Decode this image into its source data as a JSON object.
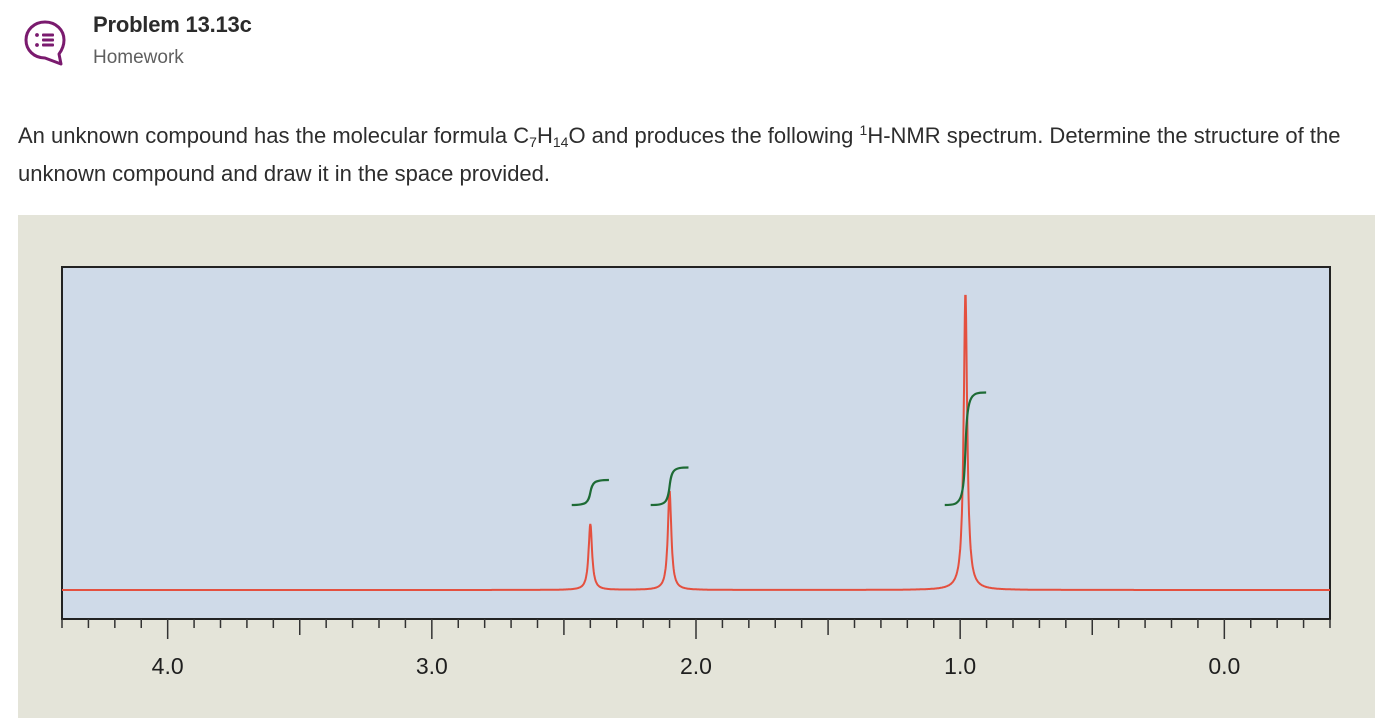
{
  "header": {
    "icon": "chat-list-icon",
    "title": "Problem 13.13c",
    "subtitle": "Homework"
  },
  "problem": {
    "text_1": "An unknown compound has the molecular formula C",
    "sub_1": "7",
    "text_2": "H",
    "sub_2": "14",
    "text_3": "O and produces the following ",
    "sup_1": "1",
    "text_4": "H-NMR spectrum. Determine the structure of the unknown compound and draw it in the space provided."
  },
  "colors": {
    "accent": "#7a1a6e",
    "figure_bg": "#e4e4d9",
    "plot_bg": "#cfdae8",
    "spectrum": "#e4503f",
    "integral": "#1e6b35"
  },
  "chart_data": {
    "type": "line",
    "title": "",
    "xlabel": "",
    "ylabel": "",
    "xlim": [
      4.4,
      -0.4
    ],
    "x_reversed": true,
    "tick_labels": [
      "4.0",
      "3.0",
      "2.0",
      "1.0",
      "0.0"
    ],
    "tick_values": [
      4.0,
      3.0,
      2.0,
      1.0,
      0.0
    ],
    "minor_tick_step": 0.1,
    "grid": false,
    "peaks": [
      {
        "ppm": 2.4,
        "relative_height": 0.2
      },
      {
        "ppm": 2.1,
        "relative_height": 0.3
      },
      {
        "ppm": 0.98,
        "relative_height": 0.9
      }
    ],
    "integrals": [
      {
        "ppm": 2.4,
        "relative_step": 0.1
      },
      {
        "ppm": 2.1,
        "relative_step": 0.15
      },
      {
        "ppm": 0.98,
        "relative_step": 0.45
      }
    ]
  }
}
